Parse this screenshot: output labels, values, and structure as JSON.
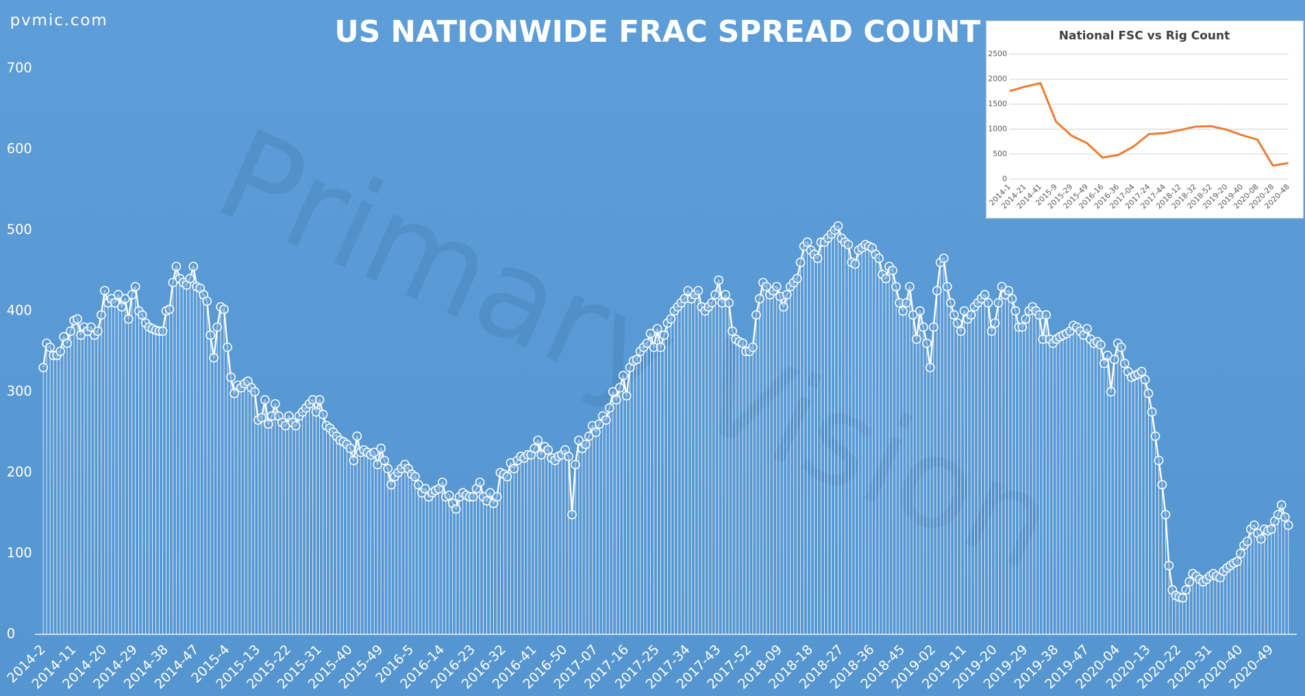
{
  "source": "pvmic.com",
  "watermark": "Primary Vision",
  "chart_data": [
    {
      "type": "line",
      "title": "US NATIONWIDE FRAC SPREAD COUNT",
      "color": "#ffffff",
      "background": "#5b9bd5",
      "markers": true,
      "drop_lines": true,
      "grid": false,
      "ylim": [
        0,
        700
      ],
      "yticks": [
        0,
        100,
        200,
        300,
        400,
        500,
        600,
        700
      ],
      "categories": [
        "2014-2",
        null,
        null,
        null,
        null,
        null,
        null,
        null,
        null,
        "2014-11",
        null,
        null,
        null,
        null,
        null,
        null,
        null,
        null,
        "2014-20",
        null,
        null,
        null,
        null,
        null,
        null,
        null,
        null,
        "2014-29",
        null,
        null,
        null,
        null,
        null,
        null,
        null,
        null,
        "2014-38",
        null,
        null,
        null,
        null,
        null,
        null,
        null,
        null,
        "2014-47",
        null,
        null,
        null,
        null,
        null,
        null,
        null,
        null,
        "2015-4",
        null,
        null,
        null,
        null,
        null,
        null,
        null,
        null,
        "2015-13",
        null,
        null,
        null,
        null,
        null,
        null,
        null,
        null,
        "2015-22",
        null,
        null,
        null,
        null,
        null,
        null,
        null,
        null,
        "2015-31",
        null,
        null,
        null,
        null,
        null,
        null,
        null,
        null,
        "2015-40",
        null,
        null,
        null,
        null,
        null,
        null,
        null,
        null,
        "2015-49",
        null,
        null,
        null,
        null,
        null,
        null,
        null,
        null,
        "2016-5",
        null,
        null,
        null,
        null,
        null,
        null,
        null,
        null,
        "2016-14",
        null,
        null,
        null,
        null,
        null,
        null,
        null,
        null,
        "2016-23",
        null,
        null,
        null,
        null,
        null,
        null,
        null,
        null,
        "2016-32",
        null,
        null,
        null,
        null,
        null,
        null,
        null,
        null,
        "2016-41",
        null,
        null,
        null,
        null,
        null,
        null,
        null,
        null,
        "2016-50",
        null,
        null,
        null,
        null,
        null,
        null,
        null,
        null,
        "2017-07",
        null,
        null,
        null,
        null,
        null,
        null,
        null,
        null,
        "2017-16",
        null,
        null,
        null,
        null,
        null,
        null,
        null,
        null,
        "2017-25",
        null,
        null,
        null,
        null,
        null,
        null,
        null,
        null,
        "2017-34",
        null,
        null,
        null,
        null,
        null,
        null,
        null,
        null,
        "2017-43",
        null,
        null,
        null,
        null,
        null,
        null,
        null,
        null,
        "2017-52",
        null,
        null,
        null,
        null,
        null,
        null,
        null,
        null,
        "2018-09",
        null,
        null,
        null,
        null,
        null,
        null,
        null,
        null,
        "2018-18",
        null,
        null,
        null,
        null,
        null,
        null,
        null,
        null,
        "2018-27",
        null,
        null,
        null,
        null,
        null,
        null,
        null,
        null,
        "2018-36",
        null,
        null,
        null,
        null,
        null,
        null,
        null,
        null,
        "2018-45",
        null,
        null,
        null,
        null,
        null,
        null,
        null,
        null,
        "2019-02",
        null,
        null,
        null,
        null,
        null,
        null,
        null,
        null,
        "2019-11",
        null,
        null,
        null,
        null,
        null,
        null,
        null,
        null,
        "2019-20",
        null,
        null,
        null,
        null,
        null,
        null,
        null,
        null,
        "2019-29",
        null,
        null,
        null,
        null,
        null,
        null,
        null,
        null,
        "2019-38",
        null,
        null,
        null,
        null,
        null,
        null,
        null,
        null,
        "2019-47",
        null,
        null,
        null,
        null,
        null,
        null,
        null,
        null,
        "2020-04",
        null,
        null,
        null,
        null,
        null,
        null,
        null,
        null,
        "2020-13",
        null,
        null,
        null,
        null,
        null,
        null,
        null,
        null,
        "2020-22",
        null,
        null,
        null,
        null,
        null,
        null,
        null,
        null,
        "2020-31",
        null,
        null,
        null,
        null,
        null,
        null,
        null,
        null,
        "2020-40",
        null,
        null,
        null,
        null,
        null,
        null,
        null,
        null,
        "2020-49",
        null,
        null,
        null,
        null,
        null
      ],
      "values": [
        330,
        360,
        355,
        345,
        345,
        350,
        368,
        360,
        375,
        388,
        390,
        370,
        380,
        375,
        380,
        370,
        375,
        395,
        425,
        410,
        415,
        410,
        420,
        405,
        415,
        390,
        420,
        430,
        400,
        395,
        385,
        380,
        378,
        376,
        375,
        375,
        400,
        402,
        435,
        455,
        440,
        435,
        432,
        440,
        455,
        430,
        428,
        420,
        412,
        370,
        342,
        380,
        405,
        402,
        355,
        318,
        298,
        308,
        305,
        310,
        313,
        305,
        300,
        265,
        268,
        290,
        260,
        270,
        285,
        270,
        262,
        258,
        270,
        262,
        258,
        270,
        275,
        280,
        285,
        290,
        275,
        290,
        272,
        258,
        255,
        250,
        245,
        240,
        238,
        235,
        230,
        215,
        245,
        225,
        228,
        225,
        222,
        225,
        210,
        230,
        215,
        205,
        185,
        195,
        200,
        205,
        210,
        205,
        198,
        195,
        185,
        175,
        180,
        170,
        175,
        178,
        180,
        188,
        170,
        172,
        162,
        155,
        170,
        175,
        172,
        170,
        170,
        180,
        188,
        170,
        165,
        175,
        162,
        170,
        200,
        198,
        195,
        212,
        205,
        215,
        220,
        218,
        222,
        222,
        230,
        240,
        222,
        232,
        228,
        218,
        215,
        220,
        222,
        228,
        220,
        148,
        210,
        240,
        230,
        235,
        245,
        258,
        250,
        260,
        270,
        265,
        280,
        300,
        290,
        305,
        320,
        295,
        330,
        338,
        340,
        350,
        355,
        360,
        372,
        355,
        378,
        355,
        370,
        385,
        390,
        400,
        405,
        410,
        415,
        425,
        415,
        420,
        425,
        405,
        400,
        405,
        410,
        420,
        438,
        410,
        420,
        410,
        375,
        365,
        362,
        360,
        350,
        350,
        355,
        395,
        415,
        435,
        430,
        420,
        425,
        430,
        418,
        405,
        420,
        430,
        435,
        440,
        460,
        480,
        485,
        475,
        470,
        465,
        485,
        485,
        490,
        495,
        500,
        505,
        490,
        485,
        482,
        460,
        458,
        475,
        478,
        482,
        480,
        478,
        470,
        465,
        445,
        440,
        455,
        450,
        430,
        410,
        400,
        410,
        430,
        395,
        365,
        400,
        380,
        360,
        330,
        380,
        425,
        460,
        465,
        430,
        410,
        395,
        385,
        375,
        400,
        390,
        395,
        405,
        410,
        415,
        420,
        410,
        375,
        385,
        410,
        430,
        420,
        425,
        415,
        400,
        380,
        380,
        390,
        400,
        405,
        400,
        395,
        365,
        395,
        365,
        360,
        365,
        368,
        370,
        372,
        375,
        382,
        380,
        375,
        370,
        378,
        365,
        360,
        362,
        358,
        335,
        345,
        300,
        340,
        360,
        355,
        335,
        325,
        318,
        320,
        322,
        325,
        315,
        298,
        275,
        245,
        215,
        185,
        148,
        85,
        55,
        48,
        46,
        45,
        55,
        65,
        75,
        72,
        68,
        65,
        68,
        72,
        75,
        72,
        70,
        78,
        82,
        85,
        88,
        90,
        100,
        110,
        115,
        130,
        135,
        125,
        118,
        130,
        128,
        130,
        140,
        148,
        160,
        145,
        135
      ]
    },
    {
      "type": "line",
      "title": "National FSC vs Rig Count",
      "color": "#ed7d31",
      "grid": true,
      "ylim": [
        0,
        2500
      ],
      "yticks": [
        0,
        500,
        1000,
        1500,
        2000,
        2500
      ],
      "categories": [
        "2014-1",
        "2014-21",
        "2014-41",
        "2015-9",
        "2015-29",
        "2015-49",
        "2016-16",
        "2016-36",
        "2017-04",
        "2017-24",
        "2017-44",
        "2018-12",
        "2018-32",
        "2018-52",
        "2019-20",
        "2019-40",
        "2020-08",
        "2020-28",
        "2020-48"
      ],
      "values": [
        1760,
        1850,
        1920,
        1150,
        870,
        720,
        430,
        480,
        650,
        900,
        920,
        980,
        1050,
        1060,
        990,
        880,
        790,
        270,
        320
      ]
    }
  ]
}
